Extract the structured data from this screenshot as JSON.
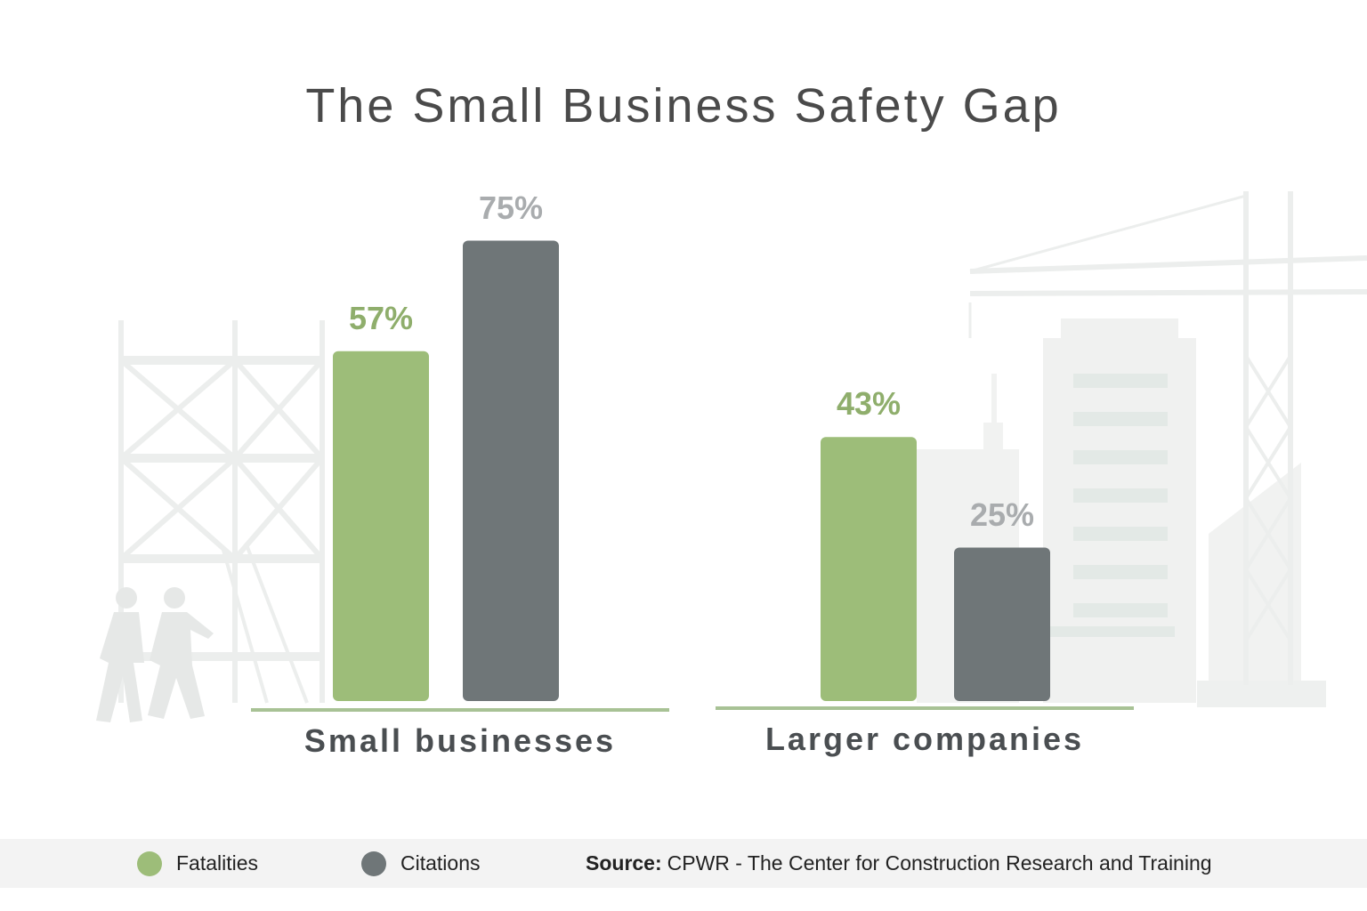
{
  "chart_data": {
    "type": "bar",
    "title": "The Small Business Safety Gap",
    "categories": [
      "Small businesses",
      "Larger companies"
    ],
    "series": [
      {
        "name": "Fatalities",
        "values": [
          57,
          43
        ],
        "labels": [
          "57%",
          "43%"
        ],
        "color": "#9dbd79",
        "label_color": "#8fae6c"
      },
      {
        "name": "Citations",
        "values": [
          75,
          25
        ],
        "labels": [
          "75%",
          "25%"
        ],
        "color": "#6f7678",
        "label_color": "#a9acae"
      }
    ],
    "unit": "%",
    "ylim": [
      0,
      80
    ],
    "legend": "bottom-left",
    "grid": false
  },
  "footer": {
    "source_label": "Source:",
    "source_text": "CPWR - The Center for Construction Research and Training"
  },
  "colors": {
    "baseline": "#a8c295",
    "background_art": "#eef0ef"
  }
}
